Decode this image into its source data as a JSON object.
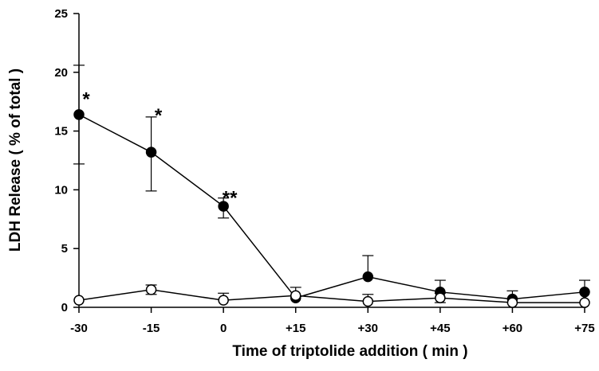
{
  "chart_data": {
    "type": "line",
    "title": "",
    "xlabel": "Time of triptolide addition ( min )",
    "ylabel": "LDH Release ( % of total )",
    "categories": [
      "-30",
      "-15",
      "0",
      "+15",
      "+30",
      "+45",
      "+60",
      "+75"
    ],
    "ylim": [
      0,
      25
    ],
    "yticks": [
      "0",
      "5",
      "10",
      "15",
      "20",
      "25"
    ],
    "grid": false,
    "legend": "none",
    "series": [
      {
        "marker": "filled-circle",
        "values": [
          16.4,
          13.2,
          8.6,
          0.8,
          2.6,
          1.3,
          0.7,
          1.3
        ],
        "error_upper": [
          4.2,
          3.0,
          0.7,
          0.9,
          1.8,
          1.0,
          0.7,
          1.0
        ],
        "error_lower": [
          4.2,
          3.3,
          1.0,
          0.0,
          0.0,
          0.0,
          0.0,
          0.0
        ]
      },
      {
        "marker": "open-circle",
        "values": [
          0.6,
          1.5,
          0.6,
          1.0,
          0.5,
          0.8,
          0.4,
          0.4
        ],
        "error_upper": [
          0.0,
          0.4,
          0.6,
          0.0,
          0.6,
          0.4,
          0.0,
          0.0
        ],
        "error_lower": [
          0.0,
          0.4,
          0.0,
          0.0,
          0.0,
          0.4,
          0.0,
          0.0
        ]
      }
    ],
    "annotations": [
      {
        "text": "*",
        "category": "-30",
        "y": 18.0
      },
      {
        "text": "*",
        "category": "-15",
        "y": 16.6
      },
      {
        "text": "**",
        "category": "0",
        "y": 9.6
      }
    ]
  }
}
